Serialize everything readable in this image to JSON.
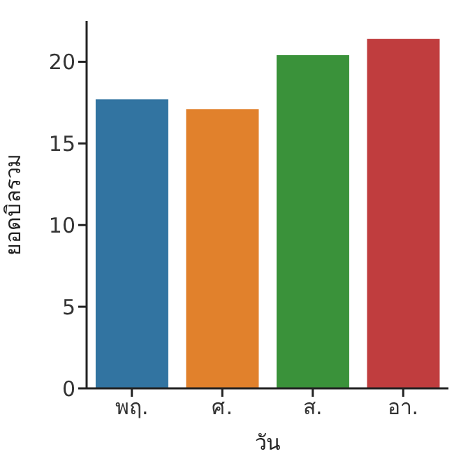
{
  "chart_data": {
    "type": "bar",
    "xlabel": "วัน",
    "ylabel": "ยอดบิลรวม",
    "categories": [
      "พฤ.",
      "ศ.",
      "ส.",
      "อา."
    ],
    "values": [
      17.7,
      17.1,
      20.4,
      21.4
    ],
    "colors": [
      "#3274a1",
      "#e1812c",
      "#3a923a",
      "#c03d3e"
    ],
    "ylim": [
      0,
      22.5
    ],
    "yticks": [
      0,
      5,
      10,
      15,
      20
    ],
    "grid": false
  }
}
